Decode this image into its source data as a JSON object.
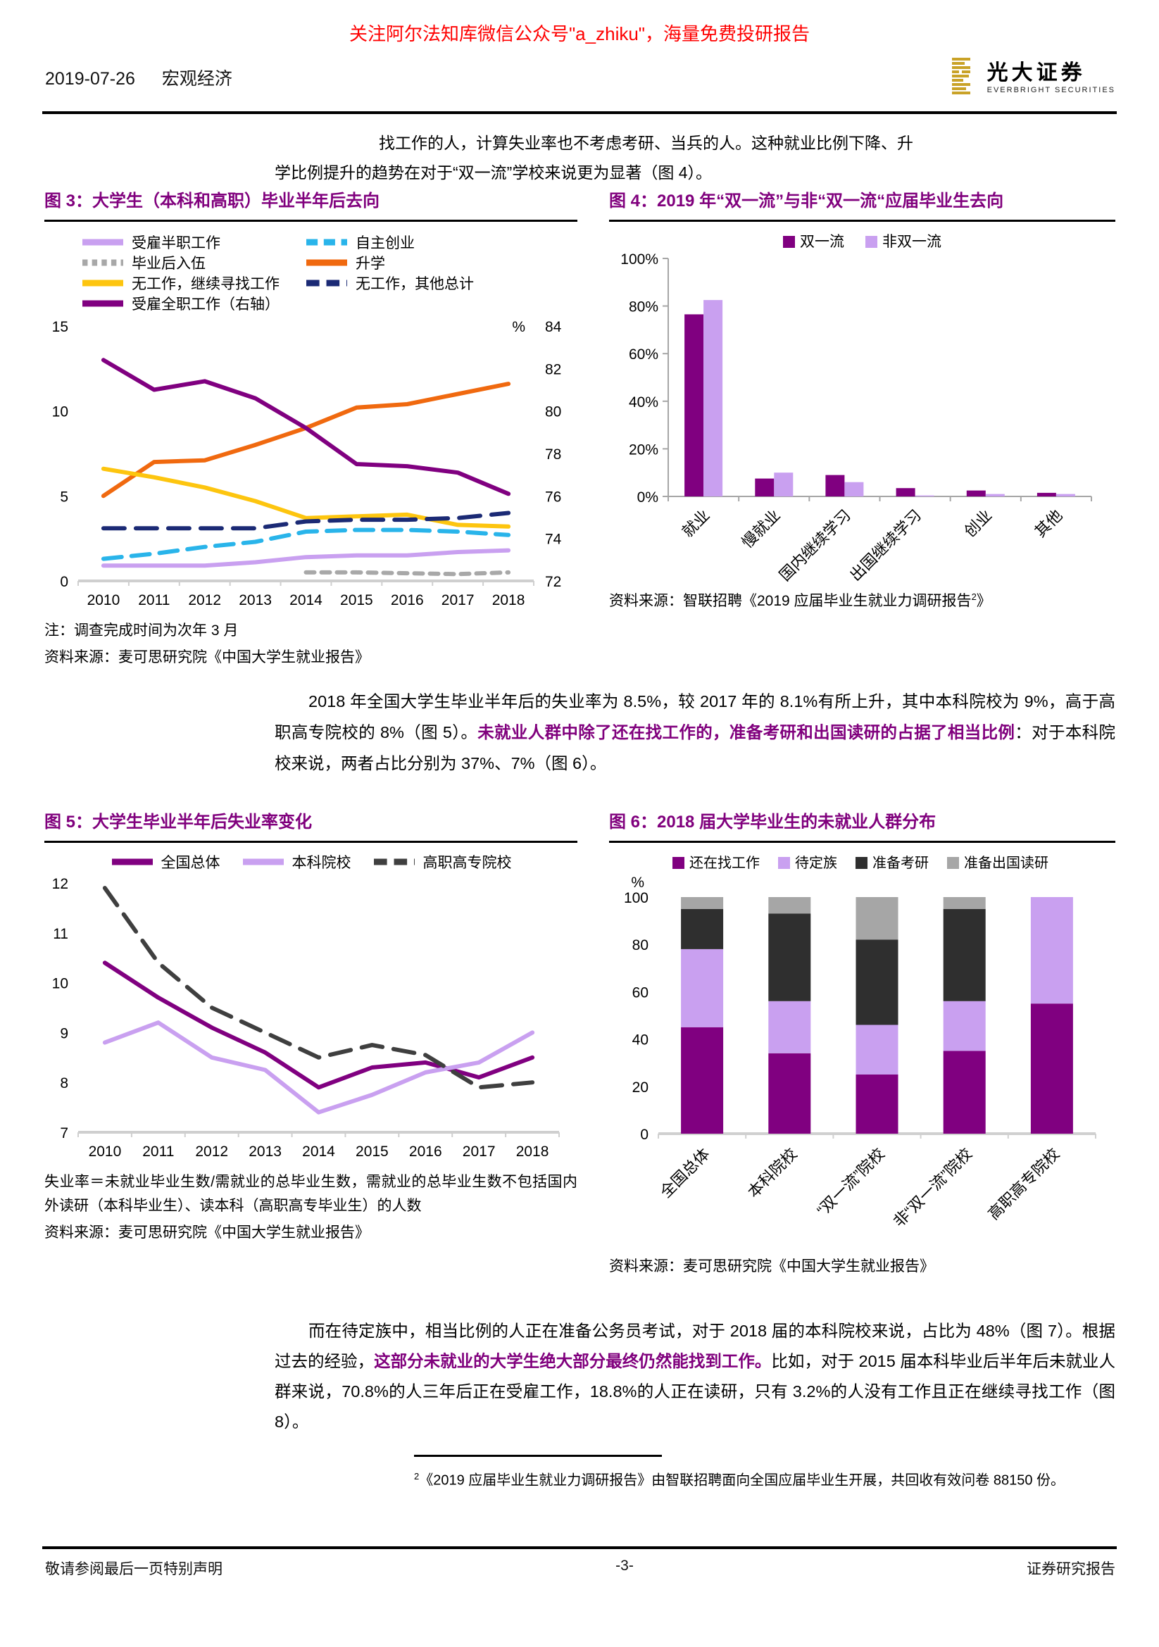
{
  "banner": "关注阿尔法知库微信公众号\"a_zhiku\"，海量免费投研报告",
  "header": {
    "date": "2019-07-26",
    "section": "宏观经济",
    "logo_cn": "光大证券",
    "logo_en": "EVERBRIGHT SECURITIES"
  },
  "intro": {
    "line1": "找工作的人，计算失业率也不考虑考研、当兵的人。这种就业比例下降、升",
    "line2": "学比例提升的趋势在对于“双一流”学校来说更为显著（图 4）。"
  },
  "para_mid": [
    {
      "t": "2018 年全国大学生毕业半年后的失业率为 8.5%，较 2017 年的 8.1%有所上升，其中本科院校为 9%，高于高职高专院校的 8%（图 5）。",
      "b": false
    },
    {
      "t": "未就业人群中除了还在找工作的，准备考研和出国读研的占据了相当比例",
      "b": true
    },
    {
      "t": "：对于本科院校来说，两者占比分别为 37%、7%（图 6）。",
      "b": false
    }
  ],
  "para_bottom": [
    {
      "t": "而在待定族中，相当比例的人正在准备公务员考试，对于 2018 届的本科院校来说，占比为 48%（图 7）。根据过去的经验，",
      "b": false
    },
    {
      "t": "这部分未就业的大学生绝大部分最终仍然能找到工作。",
      "b": true
    },
    {
      "t": "比如，对于 2015 届本科毕业后半年后未就业人群来说，70.8%的人三年后正在受雇工作，18.8%的人正在读研，只有 3.2%的人没有工作且正在继续寻找工作（图 8）。",
      "b": false
    }
  ],
  "figures": {
    "fig3": {
      "title": "图 3：大学生（本科和高职）毕业半年后去向",
      "note": "注：调查完成时间为次年 3 月",
      "source": "资料来源：麦可思研究院《中国大学生就业报告》"
    },
    "fig4": {
      "title": "图 4：2019 年“双一流”与非“双一流“应届毕业生去向",
      "source_pre": "资料来源：智联招聘《2019 应届毕业生就业力调研报告",
      "source_sup": "2",
      "source_post": "》"
    },
    "fig5": {
      "title": "图 5：大学生毕业半年后失业率变化",
      "note": "失业率＝未就业毕业生数/需就业的总毕业生数，需就业的总毕业生数不包括国内外读研（本科毕业生）、读本科（高职高专毕业生）的人数",
      "source": "资料来源：麦可思研究院《中国大学生就业报告》"
    },
    "fig6": {
      "title": "图 6：2018 届大学毕业生的未就业人群分布",
      "source": "资料来源：麦可思研究院《中国大学生就业报告》"
    }
  },
  "footnote": {
    "sup": "2",
    "text": "《2019 应届毕业生就业力调研报告》由智联招聘面向全国应届毕业生开展，共回收有效问卷 88150 份。"
  },
  "footer": {
    "left": "敬请参阅最后一页特别声明",
    "center": "-3-",
    "right": "证券研究报告"
  },
  "chart_data": [
    {
      "id": "fig3",
      "type": "line",
      "title": "大学生（本科和高职）毕业半年后去向",
      "x": [
        "2010",
        "2011",
        "2012",
        "2013",
        "2014",
        "2015",
        "2016",
        "2017",
        "2018"
      ],
      "y_left": {
        "min": 0,
        "max": 15,
        "ticks": [
          0,
          5,
          10,
          15
        ]
      },
      "y_right": {
        "min": 72,
        "max": 84,
        "ticks": [
          72,
          74,
          76,
          78,
          80,
          82,
          84
        ],
        "unit": "%"
      },
      "series": [
        {
          "name": "受雇半职工作",
          "axis": "left",
          "color": "#c9a0f0",
          "dash": null,
          "values": [
            0.9,
            0.9,
            0.9,
            1.1,
            1.4,
            1.5,
            1.5,
            1.7,
            1.8
          ]
        },
        {
          "name": "自主创业",
          "axis": "left",
          "color": "#29b4ea",
          "dash": "26 14",
          "values": [
            1.3,
            1.6,
            2.0,
            2.3,
            2.9,
            3.0,
            3.0,
            2.9,
            2.7
          ]
        },
        {
          "name": "毕业后入伍",
          "axis": "left",
          "color": "#a8a8a8",
          "dash": "12 10",
          "values": [
            null,
            null,
            null,
            null,
            0.5,
            0.5,
            0.45,
            0.4,
            0.5
          ]
        },
        {
          "name": "升学",
          "axis": "left",
          "color": "#f0690f",
          "dash": null,
          "values": [
            5.0,
            7.0,
            7.1,
            8.0,
            9.0,
            10.2,
            10.4,
            11.0,
            11.6
          ]
        },
        {
          "name": "无工作，继续寻找工作",
          "axis": "left",
          "color": "#fdc50f",
          "dash": null,
          "values": [
            6.6,
            6.1,
            5.5,
            4.7,
            3.7,
            3.8,
            3.9,
            3.3,
            3.2
          ]
        },
        {
          "name": "无工作，其他总计",
          "axis": "left",
          "color": "#1b2a75",
          "dash": "30 16",
          "values": [
            3.1,
            3.1,
            3.1,
            3.1,
            3.5,
            3.6,
            3.6,
            3.7,
            4.0
          ]
        },
        {
          "name": "受雇全职工作（右轴）",
          "axis": "right",
          "color": "#800080",
          "dash": null,
          "values": [
            82.4,
            81.0,
            81.4,
            80.6,
            79.2,
            77.5,
            77.4,
            77.1,
            76.1
          ]
        }
      ],
      "legend_columns": [
        [
          "受雇半职工作",
          "毕业后入伍",
          "无工作，继续寻找工作",
          "受雇全职工作（右轴）"
        ],
        [
          "自主创业",
          "升学",
          "无工作，其他总计"
        ]
      ]
    },
    {
      "id": "fig4",
      "type": "grouped_bar",
      "title": "2019 年“双一流”与非“双一流“应届毕业生去向",
      "categories": [
        "就业",
        "慢就业",
        "国内继续学习",
        "出国继续学习",
        "创业",
        "其他"
      ],
      "series": [
        {
          "name": "双一流",
          "color": "#800080",
          "values": [
            76.5,
            7.5,
            9,
            3.5,
            2.5,
            1.5
          ]
        },
        {
          "name": "非双一流",
          "color": "#c9a0f0",
          "values": [
            82.5,
            10,
            6,
            0.4,
            1,
            1
          ]
        }
      ],
      "y": {
        "min": 0,
        "max": 100,
        "tick_labels": [
          "0%",
          "20%",
          "40%",
          "60%",
          "80%",
          "100%"
        ]
      }
    },
    {
      "id": "fig5",
      "type": "line",
      "title": "大学生毕业半年后失业率变化",
      "x": [
        "2010",
        "2011",
        "2012",
        "2013",
        "2014",
        "2015",
        "2016",
        "2017",
        "2018"
      ],
      "y_left": {
        "min": 7,
        "max": 12,
        "ticks": [
          7,
          8,
          9,
          10,
          11,
          12
        ]
      },
      "series": [
        {
          "name": "全国总体",
          "axis": "left",
          "color": "#800080",
          "dash": null,
          "values": [
            10.4,
            9.7,
            9.1,
            8.6,
            7.9,
            8.3,
            8.4,
            8.1,
            8.5
          ]
        },
        {
          "name": "本科院校",
          "axis": "left",
          "color": "#c9a0f0",
          "dash": null,
          "values": [
            8.8,
            9.2,
            8.5,
            8.25,
            7.4,
            7.75,
            8.2,
            8.4,
            9.0
          ]
        },
        {
          "name": "高职高专院校",
          "axis": "left",
          "color": "#3f3f3f",
          "dash": "30 16",
          "values": [
            11.9,
            10.4,
            9.5,
            9.0,
            8.5,
            8.75,
            8.55,
            7.9,
            8.0
          ]
        }
      ],
      "legend_row": [
        "全国总体",
        "本科院校",
        "高职高专院校"
      ]
    },
    {
      "id": "fig6",
      "type": "stacked_bar",
      "title": "2018 届大学毕业生的未就业人群分布",
      "categories": [
        "全国总体",
        "本科院校",
        "“双一流”院校",
        "非“双一流”院校",
        "高职高专院校"
      ],
      "series": [
        {
          "name": "还在找工作",
          "color": "#800080",
          "values": [
            45,
            34,
            25,
            35,
            55
          ]
        },
        {
          "name": "待定族",
          "color": "#c9a0f0",
          "values": [
            33,
            22,
            21,
            21,
            45
          ]
        },
        {
          "name": "准备考研",
          "color": "#2f2f2f",
          "values": [
            17,
            37,
            36,
            39,
            0
          ]
        },
        {
          "name": "准备出国读研",
          "color": "#a6a6a6",
          "values": [
            5,
            7,
            18,
            5,
            0
          ]
        }
      ],
      "y": {
        "min": 0,
        "max": 100,
        "ticks": [
          0,
          20,
          40,
          60,
          80,
          100
        ],
        "unit": "%"
      }
    }
  ]
}
